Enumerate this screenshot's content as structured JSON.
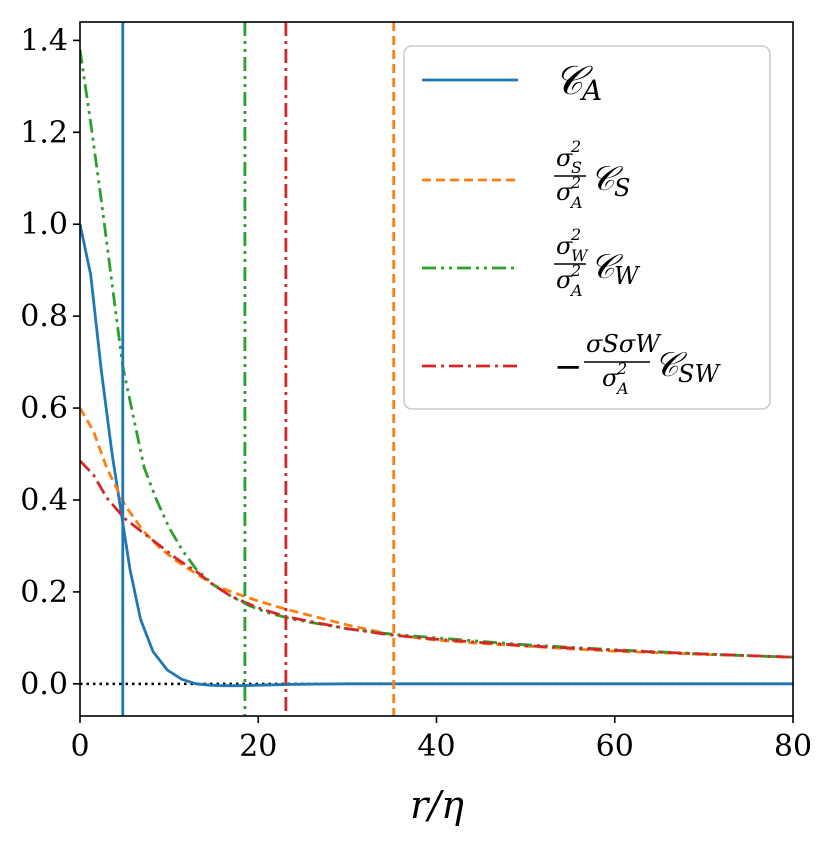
{
  "chart_data": {
    "type": "line",
    "title": "",
    "xlabel": "r/η",
    "ylabel": "",
    "xlim": [
      0,
      80
    ],
    "ylim": [
      -0.07,
      1.44
    ],
    "xticks": [
      0,
      20,
      40,
      60,
      80
    ],
    "yticks": [
      0.0,
      0.2,
      0.4,
      0.6,
      0.8,
      1.0,
      1.2,
      1.4
    ],
    "xtick_labels": [
      "0",
      "20",
      "40",
      "60",
      "80"
    ],
    "ytick_labels": [
      "0.0",
      "0.2",
      "0.4",
      "0.6",
      "0.8",
      "1.0",
      "1.2",
      "1.4"
    ],
    "legend_position": "top-right",
    "zero_line": {
      "y": 0,
      "style": "dotted",
      "color": "#000000"
    },
    "series": [
      {
        "name": "C_A",
        "legend_main": "𝒞",
        "legend_sub": "A",
        "color": "#1f77b4",
        "dash": "solid",
        "vline": 4.8,
        "x": [
          0,
          1.2,
          2.4,
          3.6,
          4.8,
          5.6,
          6.8,
          8.2,
          9.8,
          11.4,
          13,
          14.6,
          16,
          18,
          20,
          24,
          30,
          40,
          50,
          60,
          70,
          80
        ],
        "y": [
          1.0,
          0.89,
          0.68,
          0.5,
          0.35,
          0.25,
          0.14,
          0.07,
          0.03,
          0.01,
          0.0,
          -0.003,
          -0.004,
          -0.004,
          -0.003,
          -0.001,
          0.0,
          0.0,
          0.0,
          0.0,
          0.0,
          0.0
        ]
      },
      {
        "name": "σ_S²/σ_A² C_S",
        "legend_num_base": "σ",
        "legend_num_sub": "S",
        "legend_num_sup": "2",
        "legend_den_base": "σ",
        "legend_den_sub": "A",
        "legend_den_sup": "2",
        "legend_main": "𝒞",
        "legend_sub": "S",
        "color": "#ff7f0e",
        "dash": "dashed",
        "vline": 35.2,
        "x": [
          0,
          1.5,
          3,
          5,
          7,
          9,
          11,
          13,
          15,
          17,
          20,
          23,
          26,
          30,
          35,
          40,
          45,
          50,
          55,
          60,
          70,
          80
        ],
        "y": [
          0.6,
          0.55,
          0.47,
          0.39,
          0.335,
          0.295,
          0.265,
          0.24,
          0.215,
          0.2,
          0.18,
          0.163,
          0.148,
          0.128,
          0.107,
          0.095,
          0.088,
          0.082,
          0.076,
          0.071,
          0.064,
          0.058
        ]
      },
      {
        "name": "σ_W²/σ_A² C_W",
        "legend_num_base": "σ",
        "legend_num_sub": "W",
        "legend_num_sup": "2",
        "legend_den_base": "σ",
        "legend_den_sub": "A",
        "legend_den_sup": "2",
        "legend_main": "𝒞",
        "legend_sub": "W",
        "color": "#2ca02c",
        "dash": "dashdotdot",
        "vline": 18.5,
        "x": [
          0,
          1.2,
          2.4,
          3.6,
          4.8,
          6,
          7.2,
          8.6,
          10,
          11.5,
          13,
          15,
          17,
          19,
          21,
          24,
          27,
          30,
          35,
          40,
          50,
          60,
          70,
          80
        ],
        "y": [
          1.38,
          1.22,
          1.05,
          0.87,
          0.69,
          0.58,
          0.47,
          0.4,
          0.34,
          0.29,
          0.25,
          0.215,
          0.19,
          0.17,
          0.155,
          0.14,
          0.13,
          0.12,
          0.108,
          0.1,
          0.085,
          0.074,
          0.065,
          0.058
        ]
      },
      {
        "name": "-σ_Sσ_W/σ_A² C_SW",
        "legend_prefix": "−",
        "legend_num_base": "σSσW",
        "legend_num_sub": "",
        "legend_num_sup": "",
        "legend_den_base": "σ",
        "legend_den_sub": "A",
        "legend_den_sup": "2",
        "legend_main": "𝒞",
        "legend_sub": "SW",
        "color": "#d62728",
        "dash": "dashdot",
        "vline": 23.1,
        "x": [
          0,
          1.5,
          3,
          5,
          7,
          9,
          11,
          13,
          15,
          17,
          20,
          23,
          26,
          30,
          35,
          40,
          45,
          50,
          60,
          70,
          80
        ],
        "y": [
          0.485,
          0.455,
          0.405,
          0.36,
          0.33,
          0.3,
          0.27,
          0.245,
          0.215,
          0.19,
          0.165,
          0.147,
          0.135,
          0.12,
          0.106,
          0.097,
          0.09,
          0.083,
          0.073,
          0.065,
          0.058
        ]
      }
    ]
  }
}
